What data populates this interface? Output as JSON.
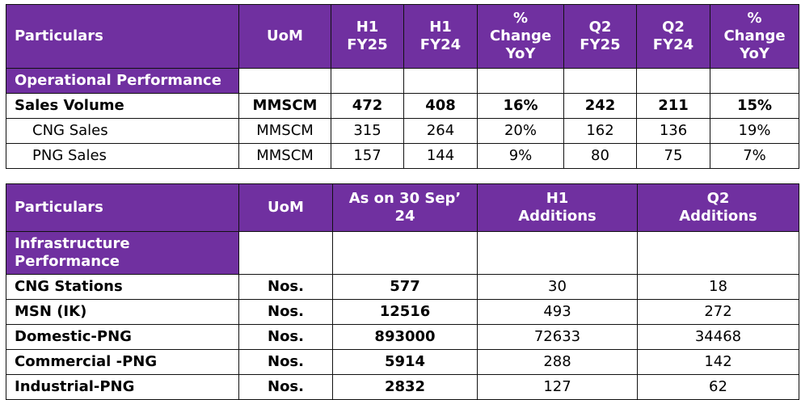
{
  "operational_table": {
    "headers": [
      "Particulars",
      "UoM",
      "H1\nFY25",
      "H1\nFY24",
      "%\nChange\nYoY",
      "Q2\nFY25",
      "Q2\nFY24",
      "%\nChange\nYoY"
    ],
    "section": "Operational Performance",
    "rows": [
      {
        "label": "Sales Volume",
        "uom": "MMSCM",
        "values": [
          "472",
          "408",
          "16%",
          "242",
          "211",
          "15%"
        ]
      },
      {
        "label": "CNG Sales",
        "uom": "MMSCM",
        "values": [
          "315",
          "264",
          "20%",
          "162",
          "136",
          "19%"
        ]
      },
      {
        "label": "PNG Sales",
        "uom": "MMSCM",
        "values": [
          "157",
          "144",
          "9%",
          "80",
          "75",
          "7%"
        ]
      }
    ]
  },
  "infrastructure_table": {
    "headers": [
      "Particulars",
      "UoM",
      "As on 30 Sep’\n24",
      "H1\nAdditions",
      "Q2\nAdditions"
    ],
    "section": "Infrastructure\nPerformance",
    "rows": [
      {
        "label": "CNG Stations",
        "uom": "Nos.",
        "values": [
          "577",
          "30",
          "18"
        ]
      },
      {
        "label": "MSN (IK)",
        "uom": "Nos.",
        "values": [
          "12516",
          "493",
          "272"
        ]
      },
      {
        "label": "Domestic-PNG",
        "uom": "Nos.",
        "values": [
          "893000",
          "72633",
          "34468"
        ]
      },
      {
        "label": "Commercial -PNG",
        "uom": "Nos.",
        "values": [
          "5914",
          "288",
          "142"
        ]
      },
      {
        "label": "Industrial-PNG",
        "uom": "Nos.",
        "values": [
          "2832",
          "127",
          "62"
        ]
      }
    ]
  },
  "colors": {
    "header_bg": "#7030A0",
    "header_text": "#FFFFFF"
  }
}
